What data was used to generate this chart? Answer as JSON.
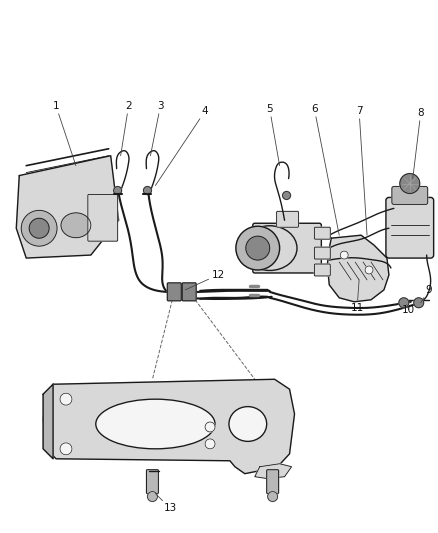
{
  "bg_color": "#ffffff",
  "line_color": "#1a1a1a",
  "fig_w": 4.38,
  "fig_h": 5.33,
  "dpi": 100,
  "lw_hose": 1.5,
  "lw_part": 1.0,
  "lw_thin": 0.6,
  "gray_fill": "#d8d8d8",
  "gray_med": "#b8b8b8",
  "gray_dark": "#888888",
  "white_fill": "#f5f5f5",
  "label_fs": 7.5
}
